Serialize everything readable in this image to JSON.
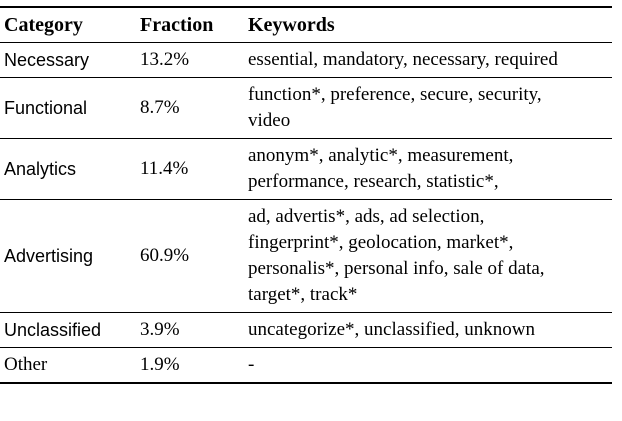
{
  "table": {
    "header": [
      "Category",
      "Fraction",
      "Keywords"
    ],
    "rows": [
      {
        "category": "Necessary",
        "fraction": "13.2%",
        "keywords": [
          "essential, mandatory, necessary, required"
        ]
      },
      {
        "category": "Functional",
        "fraction": "8.7%",
        "keywords": [
          "function*, preference, secure, security,",
          "video"
        ]
      },
      {
        "category": "Analytics",
        "fraction": "11.4%",
        "keywords": [
          "anonym*, analytic*, measurement,",
          "performance, research, statistic*,"
        ]
      },
      {
        "category": "Advertising",
        "fraction": "60.9%",
        "keywords": [
          "ad, advertis*, ads, ad selection,",
          "fingerprint*, geolocation, market*,",
          "personalis*, personal info, sale of data,",
          "target*, track*"
        ]
      },
      {
        "category": "Unclassified",
        "fraction": "3.9%",
        "keywords": [
          "uncategorize*, unclassified, unknown"
        ]
      },
      {
        "category": "Other",
        "fraction": "1.9%",
        "keywords": [
          "-"
        ]
      }
    ]
  }
}
